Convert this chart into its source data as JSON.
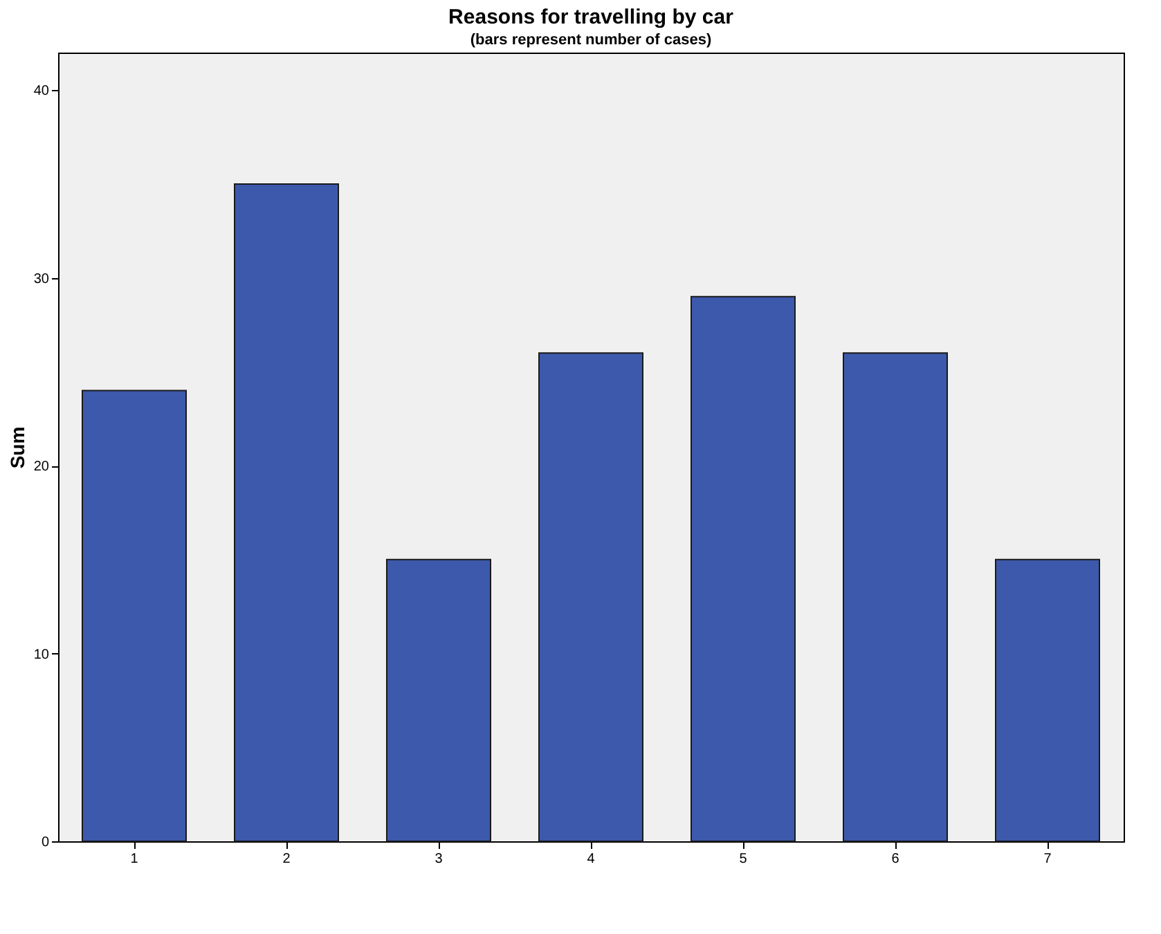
{
  "chart_data": {
    "type": "bar",
    "title": "Reasons for travelling by car",
    "subtitle": "(bars represent number of cases)",
    "ylabel": "Sum",
    "categories": [
      "1",
      "2",
      "3",
      "4",
      "5",
      "6",
      "7"
    ],
    "values": [
      24,
      35,
      15,
      26,
      29,
      26,
      15
    ],
    "color": "#3d59ab",
    "ylim": [
      0,
      42
    ],
    "yticks": [
      0,
      10,
      20,
      30,
      40
    ],
    "grid": false
  }
}
